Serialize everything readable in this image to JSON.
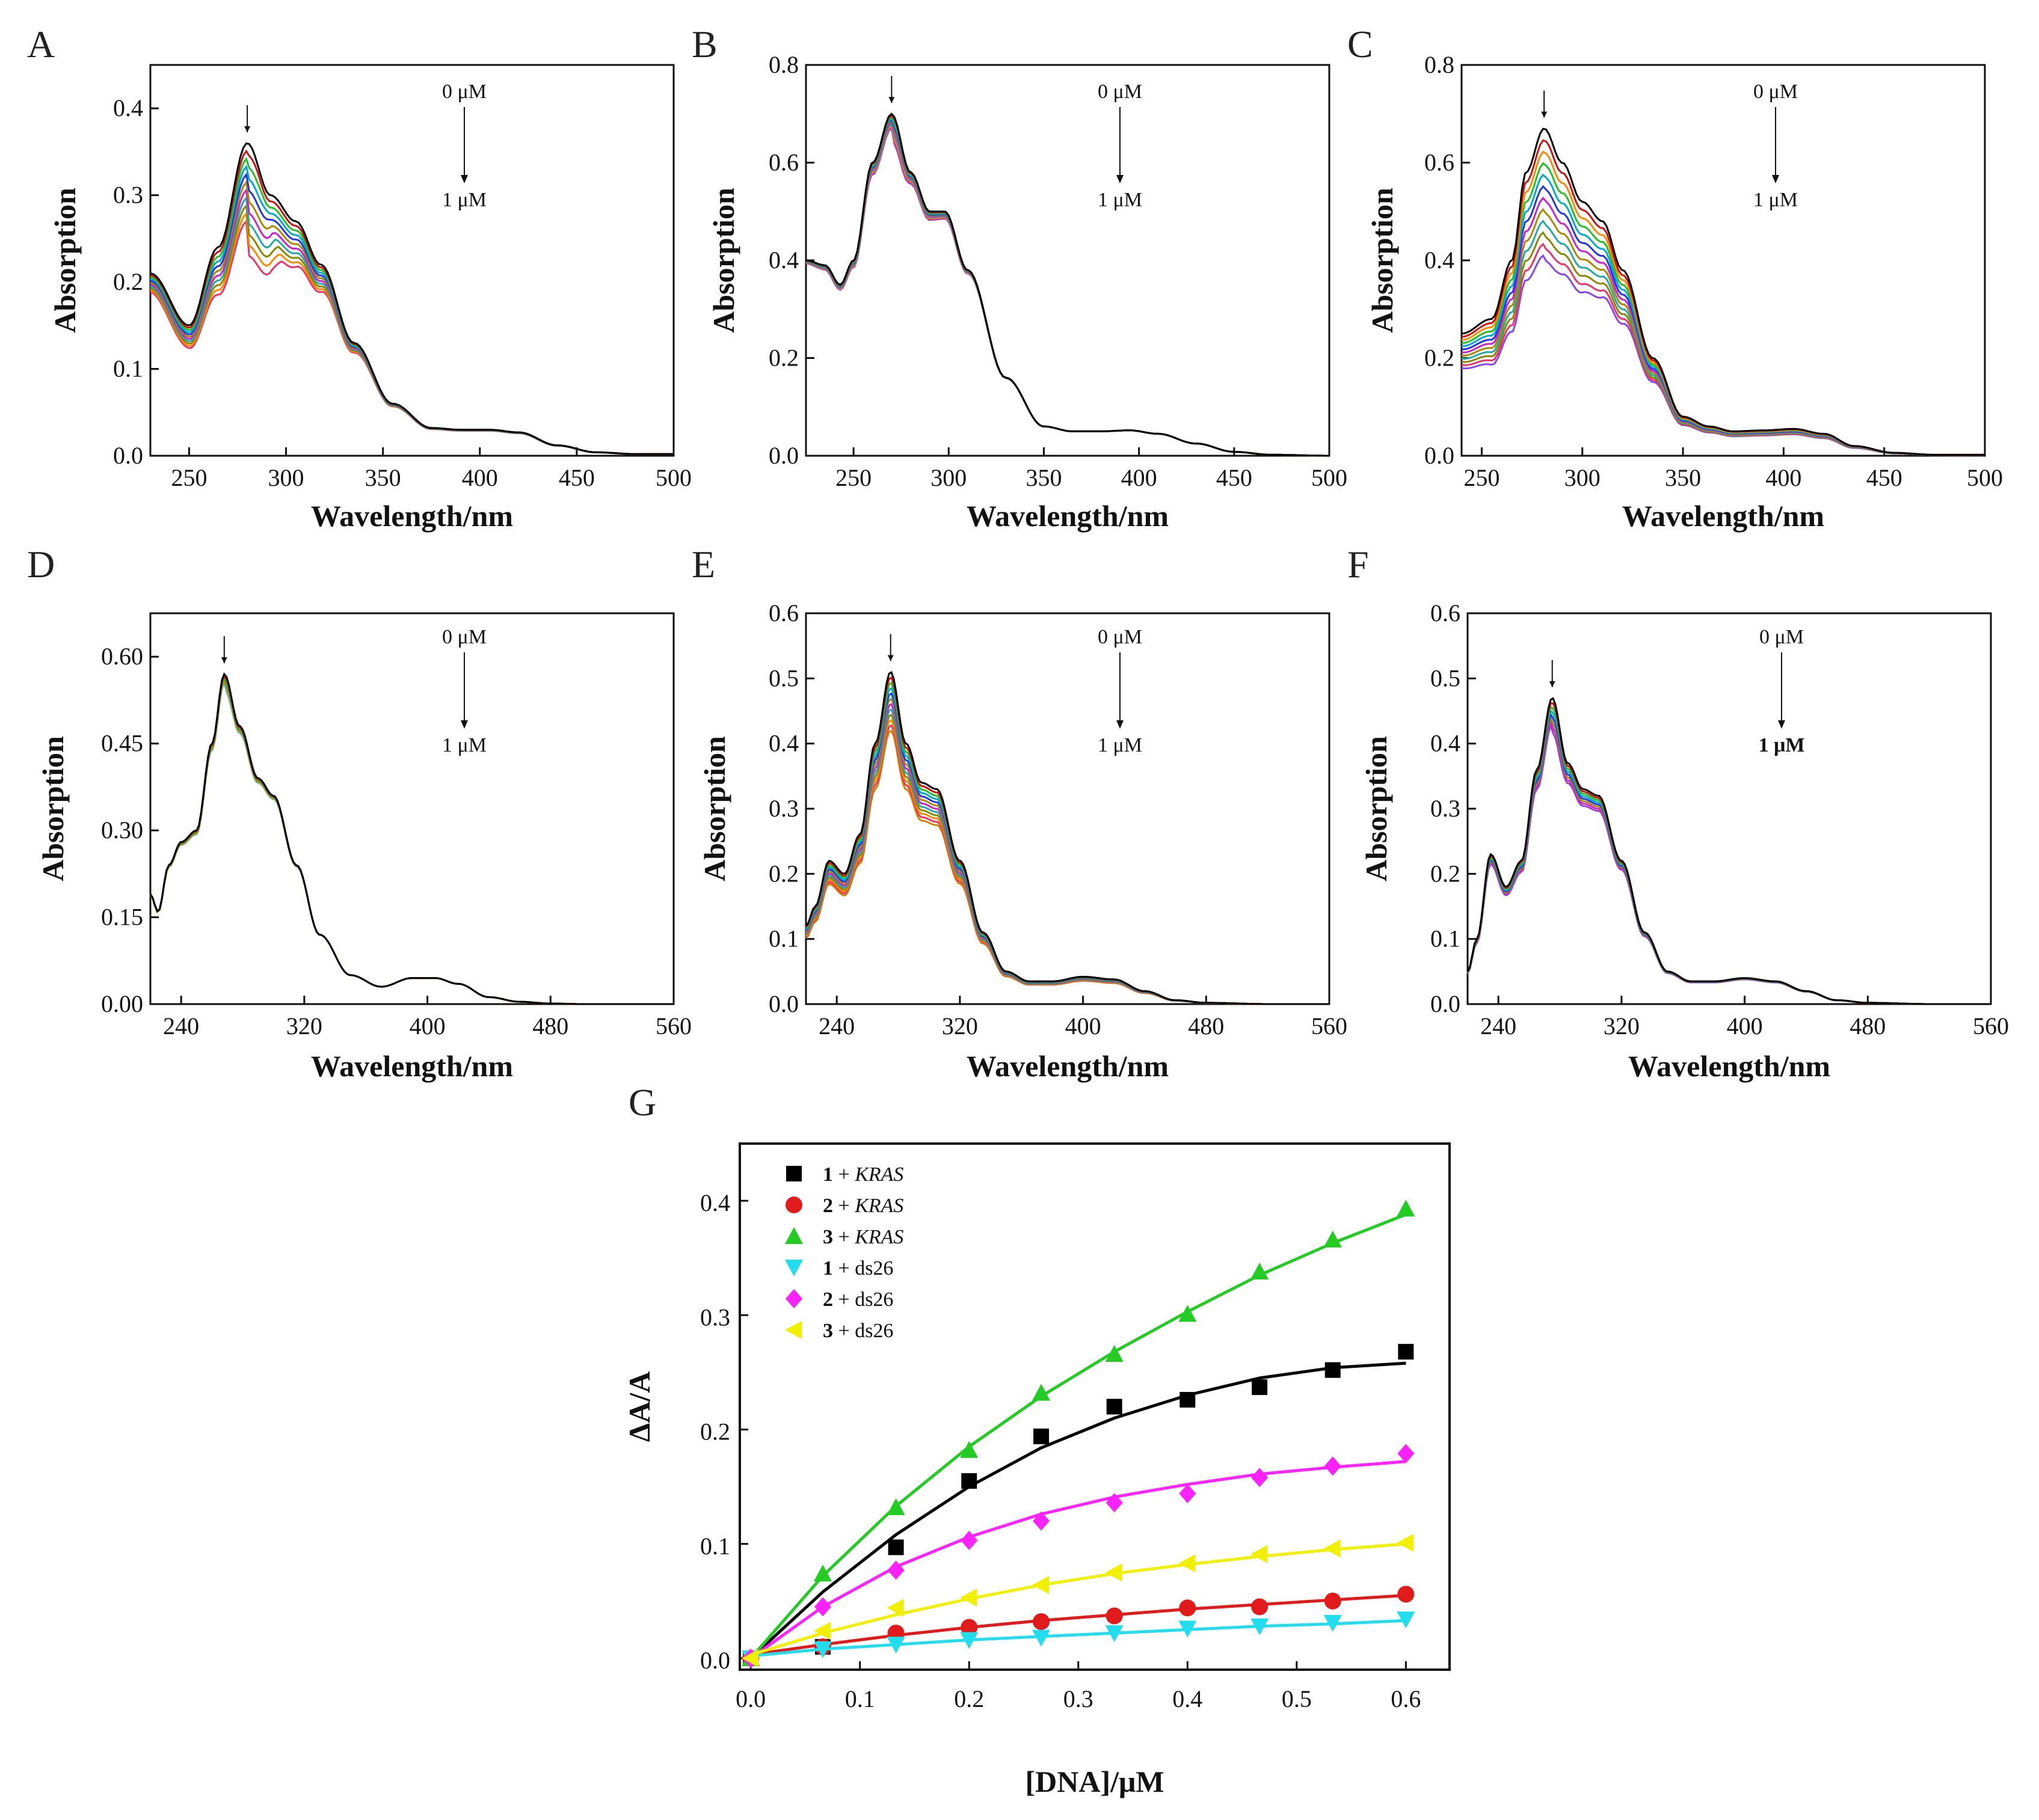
{
  "chart_data": [
    {
      "panel": "A",
      "type": "line",
      "xlabel": "Wavelength/nm",
      "ylabel": "Absorption",
      "xlim": [
        230,
        500
      ],
      "ylim": [
        0,
        0.45
      ],
      "xticks": [
        250,
        300,
        350,
        400,
        450,
        500
      ],
      "xtick_labels": [
        "250",
        "300",
        "350",
        "400",
        "450",
        "500"
      ],
      "yticks": [
        0,
        0.1,
        0.2,
        0.3,
        0.4
      ],
      "ytick_labels": [
        "0.0",
        "0.1",
        "0.2",
        "0.3",
        "0.4"
      ],
      "annotation": {
        "top": "0 μM",
        "bottom": "1 μM"
      },
      "arrow_x": 280,
      "curve_count": 11,
      "curve_colors": [
        "#000000",
        "#d01010",
        "#22c022",
        "#00aacc",
        "#2233ee",
        "#aa8800",
        "#cc22cc",
        "#22aaaa",
        "#888800",
        "#ff8800",
        "#ee3366"
      ],
      "profile": {
        "x": [
          230,
          250,
          265,
          280,
          292,
          305,
          318,
          335,
          355,
          375,
          390,
          405,
          420,
          440,
          460,
          480,
          500
        ],
        "y": [
          0.21,
          0.15,
          0.24,
          0.36,
          0.3,
          0.27,
          0.22,
          0.13,
          0.06,
          0.032,
          0.03,
          0.03,
          0.027,
          0.012,
          0.004,
          0.002,
          0.002
        ]
      },
      "peak_min": 0.27,
      "shoulder_scale": 0.82,
      "scale_min": 0.96
    },
    {
      "panel": "B",
      "type": "line",
      "xlabel": "Wavelength/nm",
      "ylabel": "Absorption",
      "xlim": [
        225,
        500
      ],
      "ylim": [
        0,
        0.8
      ],
      "xticks": [
        250,
        300,
        350,
        400,
        450,
        500
      ],
      "xtick_labels": [
        "250",
        "300",
        "350",
        "400",
        "450",
        "500"
      ],
      "yticks": [
        0,
        0.2,
        0.4,
        0.6,
        0.8
      ],
      "ytick_labels": [
        "0.0",
        "0.2",
        "0.4",
        "0.6",
        "0.8"
      ],
      "annotation": {
        "top": "0 μM",
        "bottom": "1 μM"
      },
      "arrow_x": 270,
      "curve_count": 11,
      "curve_colors": [
        "#000000",
        "#d01010",
        "#22c022",
        "#00aacc",
        "#2233ee",
        "#aa8800",
        "#cc22cc",
        "#22aaaa",
        "#ff8800",
        "#ee3366",
        "#8844ee"
      ],
      "profile": {
        "x": [
          225,
          235,
          243,
          250,
          260,
          270,
          280,
          290,
          298,
          310,
          330,
          350,
          365,
          380,
          395,
          410,
          430,
          450,
          470,
          500
        ],
        "y": [
          0.4,
          0.39,
          0.35,
          0.4,
          0.6,
          0.7,
          0.58,
          0.5,
          0.5,
          0.38,
          0.16,
          0.06,
          0.05,
          0.05,
          0.052,
          0.045,
          0.025,
          0.008,
          0.002,
          0.0
        ]
      },
      "peak_min": 0.67,
      "shoulder_scale": 0.96,
      "scale_min": 1.0
    },
    {
      "panel": "C",
      "type": "line",
      "xlabel": "Wavelength/nm",
      "ylabel": "Absorption",
      "xlim": [
        240,
        500
      ],
      "ylim": [
        0,
        0.8
      ],
      "xticks": [
        250,
        300,
        350,
        400,
        450,
        500
      ],
      "xtick_labels": [
        "250",
        "300",
        "350",
        "400",
        "450",
        "500"
      ],
      "yticks": [
        0,
        0.2,
        0.4,
        0.6,
        0.8
      ],
      "ytick_labels": [
        "0.0",
        "0.2",
        "0.4",
        "0.6",
        "0.8"
      ],
      "annotation": {
        "top": "0 μM",
        "bottom": "1 μM"
      },
      "arrow_x": 281,
      "curve_count": 12,
      "curve_colors": [
        "#000000",
        "#d01010",
        "#ff8800",
        "#22c022",
        "#00aacc",
        "#2233ee",
        "#cc22cc",
        "#aa8800",
        "#22aaaa",
        "#888800",
        "#ee3366",
        "#8844ee"
      ],
      "profile": {
        "x": [
          240,
          255,
          265,
          272,
          281,
          290,
          300,
          310,
          320,
          335,
          350,
          363,
          375,
          390,
          405,
          420,
          435,
          455,
          475,
          500
        ],
        "y": [
          0.25,
          0.28,
          0.4,
          0.58,
          0.67,
          0.6,
          0.52,
          0.48,
          0.38,
          0.2,
          0.08,
          0.06,
          0.05,
          0.052,
          0.055,
          0.045,
          0.02,
          0.006,
          0.002,
          0.002
        ]
      },
      "peak_min": 0.41,
      "shoulder_scale": 0.78,
      "scale_min": 0.8
    },
    {
      "panel": "D",
      "type": "line",
      "xlabel": "Wavelength/nm",
      "ylabel": "Absorption",
      "xlim": [
        220,
        560
      ],
      "ylim": [
        0,
        0.675
      ],
      "xticks": [
        240,
        320,
        400,
        480,
        560
      ],
      "xtick_labels": [
        "240",
        "320",
        "400",
        "480",
        "560"
      ],
      "yticks": [
        0,
        0.15,
        0.3,
        0.45,
        0.6
      ],
      "ytick_labels": [
        "0.00",
        "0.15",
        "0.30",
        "0.45",
        "0.60"
      ],
      "annotation": {
        "top": "0 μM",
        "bottom": "1 μM"
      },
      "arrow_x": 268,
      "curve_count": 6,
      "curve_colors": [
        "#000000",
        "#d01010",
        "#22c022",
        "#888800",
        "#cc8844",
        "#44cccc"
      ],
      "profile": {
        "x": [
          220,
          225,
          232,
          240,
          250,
          260,
          268,
          278,
          290,
          300,
          315,
          330,
          350,
          370,
          390,
          405,
          420,
          440,
          460,
          480,
          500,
          560
        ],
        "y": [
          0.19,
          0.16,
          0.24,
          0.28,
          0.3,
          0.45,
          0.57,
          0.48,
          0.39,
          0.36,
          0.24,
          0.12,
          0.05,
          0.03,
          0.045,
          0.045,
          0.035,
          0.012,
          0.004,
          0.001,
          0.0,
          0.0
        ]
      },
      "peak_min": 0.555,
      "shoulder_scale": 0.98,
      "scale_min": 1.0
    },
    {
      "panel": "E",
      "type": "line",
      "xlabel": "Wavelength/nm",
      "ylabel": "Absorption",
      "xlim": [
        220,
        560
      ],
      "ylim": [
        0,
        0.6
      ],
      "xticks": [
        240,
        320,
        400,
        480,
        560
      ],
      "xtick_labels": [
        "240",
        "320",
        "400",
        "480",
        "560"
      ],
      "yticks": [
        0,
        0.1,
        0.2,
        0.3,
        0.4,
        0.5,
        0.6
      ],
      "ytick_labels": [
        "0.0",
        "0.1",
        "0.2",
        "0.3",
        "0.4",
        "0.5",
        "0.6"
      ],
      "annotation": {
        "top": "0 μM",
        "bottom": "1 μM"
      },
      "arrow_x": 275,
      "curve_count": 12,
      "curve_colors": [
        "#000000",
        "#d01010",
        "#22c022",
        "#00aacc",
        "#2233ee",
        "#aa8800",
        "#cc22cc",
        "#22aaaa",
        "#888800",
        "#ff8800",
        "#ee3366",
        "#cc8800"
      ],
      "profile": {
        "x": [
          220,
          226,
          235,
          245,
          255,
          265,
          275,
          285,
          295,
          305,
          320,
          335,
          350,
          365,
          380,
          400,
          420,
          440,
          460,
          480,
          520,
          560
        ],
        "y": [
          0.12,
          0.15,
          0.22,
          0.2,
          0.26,
          0.4,
          0.51,
          0.4,
          0.34,
          0.33,
          0.22,
          0.11,
          0.05,
          0.035,
          0.035,
          0.042,
          0.038,
          0.02,
          0.006,
          0.002,
          0.0,
          0.0
        ]
      },
      "peak_min": 0.42,
      "shoulder_scale": 0.85,
      "scale_min": 0.85
    },
    {
      "panel": "F",
      "type": "line",
      "xlabel": "Wavelength/nm",
      "ylabel": "Absorption",
      "xlim": [
        220,
        560
      ],
      "ylim": [
        0,
        0.6
      ],
      "xticks": [
        240,
        320,
        400,
        480,
        560
      ],
      "xtick_labels": [
        "240",
        "320",
        "400",
        "480",
        "560"
      ],
      "yticks": [
        0,
        0.1,
        0.2,
        0.3,
        0.4,
        0.5,
        0.6
      ],
      "ytick_labels": [
        "0.0",
        "0.1",
        "0.2",
        "0.3",
        "0.4",
        "0.5",
        "0.6"
      ],
      "annotation": {
        "top": "0 μM",
        "bottom": "1 μM"
      },
      "arrow_x": 275,
      "curve_count": 8,
      "curve_colors": [
        "#000000",
        "#d01010",
        "#22c022",
        "#00aacc",
        "#2233ee",
        "#aa8800",
        "#cc22cc",
        "#9944cc"
      ],
      "profile": {
        "x": [
          220,
          226,
          235,
          245,
          255,
          265,
          275,
          285,
          295,
          305,
          320,
          335,
          350,
          365,
          380,
          400,
          420,
          440,
          460,
          480,
          520,
          560
        ],
        "y": [
          0.05,
          0.1,
          0.23,
          0.18,
          0.22,
          0.36,
          0.47,
          0.37,
          0.33,
          0.32,
          0.22,
          0.11,
          0.05,
          0.035,
          0.035,
          0.04,
          0.035,
          0.02,
          0.006,
          0.002,
          0.0,
          0.0
        ]
      },
      "peak_min": 0.43,
      "shoulder_scale": 0.92,
      "scale_min": 0.95
    },
    {
      "panel": "G",
      "type": "scatter",
      "xlabel": "[DNA]/μM",
      "ylabel": "ΔA/A",
      "xlim": [
        -0.01,
        0.64
      ],
      "ylim": [
        -0.01,
        0.45
      ],
      "xticks": [
        0,
        0.1,
        0.2,
        0.3,
        0.4,
        0.5,
        0.6
      ],
      "xtick_labels": [
        "0.0",
        "0.1",
        "0.2",
        "0.3",
        "0.4",
        "0.5",
        "0.6"
      ],
      "yticks": [
        0,
        0.1,
        0.2,
        0.3,
        0.4
      ],
      "ytick_labels": [
        "0.0",
        "0.1",
        "0.2",
        "0.3",
        "0.4"
      ],
      "legend_position": "top-left",
      "x": [
        0.0,
        0.066,
        0.133,
        0.2,
        0.266,
        0.333,
        0.4,
        0.466,
        0.533,
        0.6
      ],
      "series": [
        {
          "num": "1",
          "target": "KRAS",
          "target_italic": true,
          "marker": "square",
          "color": "#000000",
          "values": [
            0.0,
            0.01,
            0.097,
            0.155,
            0.194,
            0.22,
            0.226,
            0.237,
            0.252,
            0.268
          ],
          "fit": [
            0.0,
            0.058,
            0.108,
            0.15,
            0.184,
            0.21,
            0.23,
            0.245,
            0.254,
            0.258
          ]
        },
        {
          "num": "2",
          "target": "KRAS",
          "target_italic": true,
          "marker": "circle",
          "color": "#e11b1b",
          "values": [
            0.0,
            0.01,
            0.022,
            0.027,
            0.032,
            0.037,
            0.044,
            0.045,
            0.05,
            0.056
          ],
          "fit": [
            0.003,
            0.012,
            0.02,
            0.027,
            0.033,
            0.038,
            0.043,
            0.047,
            0.051,
            0.055
          ]
        },
        {
          "num": "3",
          "target": "KRAS",
          "target_italic": true,
          "marker": "triangle-up",
          "color": "#22cc22",
          "values": [
            0.0,
            0.074,
            0.132,
            0.182,
            0.232,
            0.266,
            0.301,
            0.338,
            0.366,
            0.393
          ],
          "fit": [
            0.0,
            0.072,
            0.133,
            0.185,
            0.229,
            0.268,
            0.303,
            0.335,
            0.363,
            0.388
          ]
        },
        {
          "num": "1",
          "target": "ds26",
          "target_italic": false,
          "marker": "triangle-down",
          "color": "#22ddee",
          "values": [
            0.0,
            0.008,
            0.012,
            0.016,
            0.018,
            0.022,
            0.026,
            0.028,
            0.031,
            0.034
          ],
          "fit": [
            0.002,
            0.008,
            0.012,
            0.016,
            0.019,
            0.022,
            0.025,
            0.028,
            0.03,
            0.033
          ]
        },
        {
          "num": "2",
          "target": "ds26",
          "target_italic": false,
          "marker": "diamond",
          "color": "#ff22ff",
          "values": [
            0.0,
            0.045,
            0.077,
            0.103,
            0.12,
            0.136,
            0.144,
            0.158,
            0.168,
            0.179
          ],
          "fit": [
            0.0,
            0.045,
            0.08,
            0.106,
            0.126,
            0.141,
            0.152,
            0.161,
            0.167,
            0.172
          ]
        },
        {
          "num": "3",
          "target": "ds26",
          "target_italic": false,
          "marker": "triangle-left",
          "color": "#f0f000",
          "values": [
            0.0,
            0.024,
            0.044,
            0.053,
            0.064,
            0.075,
            0.083,
            0.091,
            0.096,
            0.101
          ],
          "fit": [
            0.003,
            0.022,
            0.038,
            0.052,
            0.064,
            0.074,
            0.082,
            0.089,
            0.095,
            0.1
          ]
        }
      ]
    }
  ]
}
